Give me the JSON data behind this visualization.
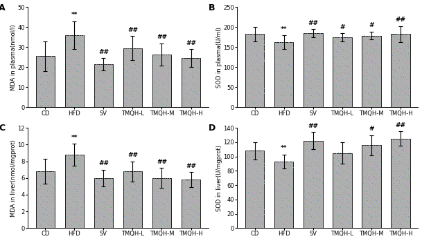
{
  "panels": [
    {
      "label": "A",
      "ylabel": "MDA in plasma(nmol/l)",
      "ylim": [
        0,
        50
      ],
      "yticks": [
        0,
        10,
        20,
        30,
        40,
        50
      ],
      "categories": [
        "CD",
        "HFD",
        "SV",
        "TMQH-L",
        "TMQH-M",
        "TMQH-H"
      ],
      "values": [
        25.5,
        36.0,
        21.5,
        29.5,
        26.5,
        24.5
      ],
      "errors": [
        7.5,
        7.0,
        3.0,
        6.0,
        5.5,
        4.5
      ],
      "annotations": [
        "",
        "**",
        "##",
        "##",
        "##",
        "##"
      ]
    },
    {
      "label": "B",
      "ylabel": "SOD in plasma(U/ml)",
      "ylim": [
        0,
        250
      ],
      "yticks": [
        0,
        50,
        100,
        150,
        200,
        250
      ],
      "categories": [
        "CD",
        "HFD",
        "SV",
        "TMQH-L",
        "TMQH-M",
        "TMQH-H"
      ],
      "values": [
        183,
        163,
        185,
        175,
        179,
        183
      ],
      "errors": [
        18,
        17,
        10,
        10,
        10,
        20
      ],
      "annotations": [
        "",
        "**",
        "##",
        "#",
        "#",
        "##"
      ]
    },
    {
      "label": "C",
      "ylabel": "MDA in liver(nmol/mgprot)",
      "ylim": [
        0,
        12
      ],
      "yticks": [
        0,
        2,
        4,
        6,
        8,
        10,
        12
      ],
      "categories": [
        "CD",
        "HFD",
        "SV",
        "TMQH-L",
        "TMQH-M",
        "TMQH-H"
      ],
      "values": [
        6.8,
        8.8,
        6.0,
        6.8,
        6.0,
        5.8
      ],
      "errors": [
        1.5,
        1.3,
        1.0,
        1.2,
        1.2,
        0.9
      ],
      "annotations": [
        "",
        "**",
        "##",
        "##",
        "##",
        "##"
      ]
    },
    {
      "label": "D",
      "ylabel": "SOD in liver(U/mgprot)",
      "ylim": [
        0,
        140
      ],
      "yticks": [
        0,
        20,
        40,
        60,
        80,
        100,
        120,
        140
      ],
      "categories": [
        "CD",
        "HFD",
        "SV",
        "TMQH-L",
        "TMQH-M",
        "TMQH-H"
      ],
      "values": [
        108,
        93,
        122,
        105,
        116,
        125
      ],
      "errors": [
        12,
        10,
        12,
        15,
        14,
        10
      ],
      "annotations": [
        "",
        "**",
        "##",
        "",
        "#",
        "##"
      ]
    }
  ],
  "bar_width": 0.65,
  "background_color": "#ffffff",
  "font_size": 6,
  "label_font_size": 9,
  "annot_font_size": 6.5,
  "tick_font_size": 6
}
